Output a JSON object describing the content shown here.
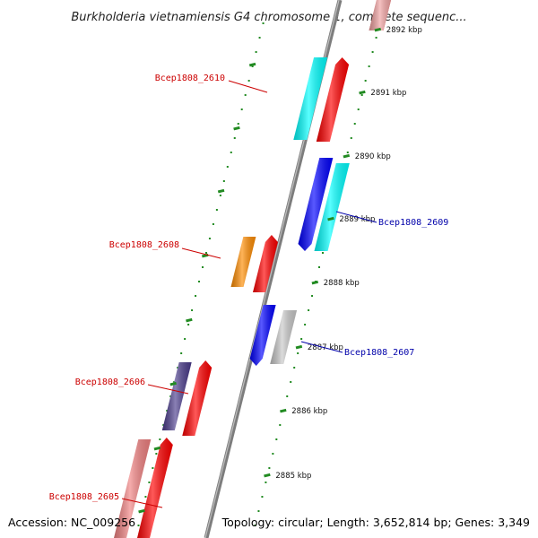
{
  "title": "Burkholderia vietnamiensis G4 chromosome 1, complete sequenc...",
  "footer": {
    "accession": "Accession: NC_009256",
    "summary": "Topology: circular; Length: 3,652,814 bp; Genes: 3,349"
  },
  "colors": {
    "backbone": "#8a8a8a",
    "tick": "#228b22",
    "label_reverse": "#cc0000",
    "label_forward": "#0000aa"
  },
  "ticks": [
    "2892 kbp",
    "2891 kbp",
    "2890 kbp",
    "2889 kbp",
    "2888 kbp",
    "2887 kbp",
    "2886 kbp",
    "2885 kbp"
  ],
  "gene_labels": [
    {
      "name": "Bcep1808_2610",
      "strand": "reverse"
    },
    {
      "name": "Bcep1808_2609",
      "strand": "forward"
    },
    {
      "name": "Bcep1808_2608",
      "strand": "reverse"
    },
    {
      "name": "Bcep1808_2607",
      "strand": "forward"
    },
    {
      "name": "Bcep1808_2606",
      "strand": "reverse"
    },
    {
      "name": "Bcep1808_2605",
      "strand": "reverse"
    }
  ],
  "features": [
    {
      "kind": "cds",
      "color": "#ff0000",
      "strand": "forward"
    },
    {
      "kind": "gene",
      "color": "#f0a0a0",
      "strand": "forward"
    },
    {
      "kind": "cds",
      "color": "#ff0000",
      "strand": "reverse"
    },
    {
      "kind": "gene",
      "color": "#00ffff",
      "strand": "reverse"
    },
    {
      "kind": "cds",
      "color": "#0000ff",
      "strand": "forward"
    },
    {
      "kind": "gene",
      "color": "#00ffff",
      "strand": "forward"
    },
    {
      "kind": "cds",
      "color": "#ff0000",
      "strand": "reverse"
    },
    {
      "kind": "gene",
      "color": "#ff8c00",
      "strand": "reverse"
    },
    {
      "kind": "cds",
      "color": "#0000ff",
      "strand": "forward"
    },
    {
      "kind": "gene",
      "color": "#c8c8c8",
      "strand": "forward"
    },
    {
      "kind": "cds",
      "color": "#ff0000",
      "strand": "reverse"
    },
    {
      "kind": "gene",
      "color": "#4b3c8c",
      "strand": "reverse"
    },
    {
      "kind": "cds",
      "color": "#ff0000",
      "strand": "reverse"
    },
    {
      "kind": "gene",
      "color": "#f08080",
      "strand": "reverse"
    }
  ]
}
